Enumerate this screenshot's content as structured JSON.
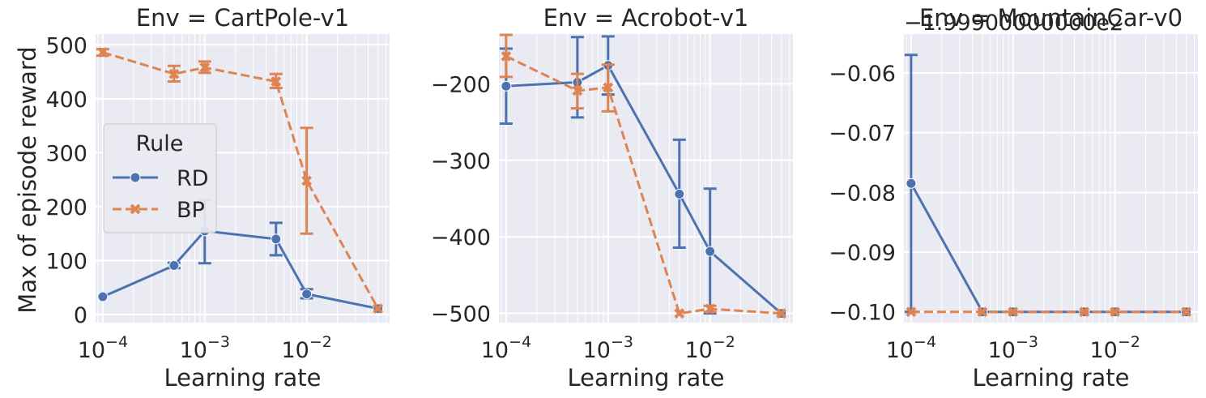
{
  "figure": {
    "ylabel": "Max of episode reward",
    "xlabel": "Learning rate"
  },
  "legend": {
    "title": "Rule",
    "entries": [
      {
        "label": "RD",
        "series": "RD"
      },
      {
        "label": "BP",
        "series": "BP"
      }
    ]
  },
  "colors": {
    "RD": "#4c72b0",
    "BP": "#dd8452",
    "axes_bg": "#eaeaf2",
    "grid": "#ffffff"
  },
  "chart_data": [
    {
      "type": "line",
      "title": "Env = CartPole-v1",
      "xlabel": "Learning rate",
      "ylabel": "Max of episode reward",
      "xscale": "log",
      "xlim": [
        8.5e-05,
        0.065
      ],
      "ylim": [
        -15,
        520
      ],
      "xticks": [
        0.0001,
        0.001,
        0.01
      ],
      "xtick_labels": [
        "10−4",
        "10−3",
        "10−2"
      ],
      "yticks": [
        0,
        100,
        200,
        300,
        400,
        500
      ],
      "ytick_labels": [
        "0",
        "100",
        "200",
        "300",
        "400",
        "500"
      ],
      "offset_text": "",
      "grid": true,
      "legend_position": "center-left",
      "x": [
        0.0001,
        0.0005,
        0.001,
        0.005,
        0.01,
        0.05
      ],
      "series": [
        {
          "name": "RD",
          "marker": "circle",
          "dashed": false,
          "values": [
            33,
            91,
            155,
            140,
            38,
            11
          ],
          "err_low": [
            null,
            86,
            95,
            110,
            30,
            null
          ],
          "err_high": [
            null,
            96,
            212,
            170,
            47,
            null
          ]
        },
        {
          "name": "BP",
          "marker": "x",
          "dashed": true,
          "values": [
            486,
            446,
            458,
            432,
            248,
            11
          ],
          "err_low": [
            480,
            432,
            448,
            420,
            150,
            null
          ],
          "err_high": [
            492,
            461,
            469,
            446,
            346,
            null
          ]
        }
      ]
    },
    {
      "type": "line",
      "title": "Env = Acrobot-v1",
      "xlabel": "Learning rate",
      "ylabel": "",
      "xscale": "log",
      "xlim": [
        8.5e-05,
        0.065
      ],
      "ylim": [
        -512,
        -135
      ],
      "xticks": [
        0.0001,
        0.001,
        0.01
      ],
      "xtick_labels": [
        "10−4",
        "10−3",
        "10−2"
      ],
      "yticks": [
        -200,
        -300,
        -400,
        -500
      ],
      "ytick_labels": [
        "−200",
        "−300",
        "−400",
        "−500"
      ],
      "offset_text": "",
      "grid": true,
      "x": [
        0.0001,
        0.0005,
        0.001,
        0.005,
        0.01,
        0.05
      ],
      "series": [
        {
          "name": "RD",
          "marker": "circle",
          "dashed": false,
          "values": [
            -203,
            -198,
            -176,
            -344,
            -419,
            -500
          ],
          "err_low": [
            -252,
            -244,
            -214,
            -414,
            -500,
            null
          ],
          "err_high": [
            -154,
            -139,
            -138,
            -273,
            -337,
            null
          ]
        },
        {
          "name": "BP",
          "marker": "x",
          "dashed": true,
          "values": [
            -164,
            -209,
            -205,
            -500,
            -494,
            -500
          ],
          "err_low": [
            -191,
            -232,
            -236,
            null,
            -498,
            null
          ],
          "err_high": [
            -136,
            -187,
            -175,
            null,
            -490,
            null
          ]
        }
      ]
    },
    {
      "type": "line",
      "title": "Env = MountainCar-v0",
      "xlabel": "Learning rate",
      "ylabel": "",
      "xscale": "log",
      "xlim": [
        8.5e-05,
        0.065
      ],
      "ylim": [
        -0.1018,
        -0.0535
      ],
      "xticks": [
        0.0001,
        0.001,
        0.01
      ],
      "xtick_labels": [
        "10−4",
        "10−3",
        "10−2"
      ],
      "yticks": [
        -0.06,
        -0.07,
        -0.08,
        -0.09,
        -0.1
      ],
      "ytick_labels": [
        "−0.06",
        "−0.07",
        "−0.08",
        "−0.09",
        "−0.10"
      ],
      "offset_text": "−1.99900000000e2",
      "grid": true,
      "x": [
        0.0001,
        0.0005,
        0.001,
        0.005,
        0.01,
        0.05
      ],
      "series": [
        {
          "name": "RD",
          "marker": "circle",
          "dashed": false,
          "values": [
            -0.0785,
            -0.1,
            -0.1,
            -0.1,
            -0.1,
            -0.1
          ],
          "err_low": [
            -0.1,
            null,
            null,
            null,
            null,
            null
          ],
          "err_high": [
            -0.057,
            null,
            null,
            null,
            null,
            null
          ]
        },
        {
          "name": "BP",
          "marker": "x",
          "dashed": true,
          "values": [
            -0.1,
            -0.1,
            -0.1,
            -0.1,
            -0.1,
            -0.1
          ],
          "err_low": [
            null,
            null,
            null,
            null,
            null,
            null
          ],
          "err_high": [
            null,
            null,
            null,
            null,
            null,
            null
          ]
        }
      ]
    }
  ]
}
